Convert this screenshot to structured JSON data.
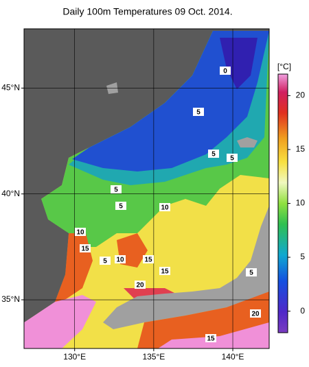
{
  "title": "Daily 100m Temperatures 09 Oct. 2014.",
  "map": {
    "xlim": [
      126.8,
      142.3
    ],
    "ylim": [
      32.7,
      47.8
    ],
    "xticks": [
      {
        "value": 130,
        "label": "130°E"
      },
      {
        "value": 135,
        "label": "135°E"
      },
      {
        "value": 140,
        "label": "140°E"
      }
    ],
    "yticks": [
      {
        "value": 35,
        "label": "35°N"
      },
      {
        "value": 40,
        "label": "40°N"
      },
      {
        "value": 45,
        "label": "45°N"
      }
    ],
    "grid": true,
    "contour_labels": [
      0,
      5,
      5,
      5,
      5,
      5,
      10,
      10,
      15,
      5,
      10,
      15,
      15,
      5,
      20,
      20,
      15
    ]
  },
  "colorbar": {
    "unit": "[°C]",
    "lim": [
      -2,
      22
    ],
    "ticks": [
      0,
      5,
      10,
      15,
      20
    ]
  }
}
